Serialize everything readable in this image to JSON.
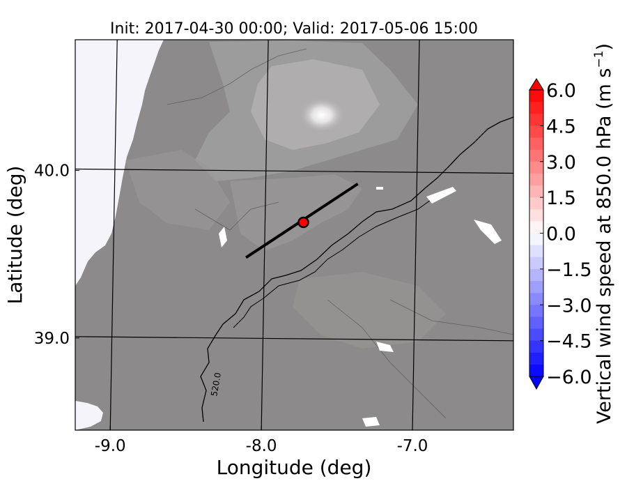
{
  "chart_data": {
    "type": "heatmap",
    "title": "Init: 2017-04-30 00:00; Valid: 2017-05-06 15:00",
    "xlabel": "Longitude (deg)",
    "ylabel": "Latitude (deg)",
    "xlim": [
      -9.25,
      -6.35
    ],
    "ylim": [
      38.45,
      40.78
    ],
    "x_ticks": [
      {
        "value": -9.0,
        "label": "-9.0"
      },
      {
        "value": -8.0,
        "label": "-8.0"
      },
      {
        "value": -7.0,
        "label": "-7.0"
      }
    ],
    "y_ticks": [
      {
        "value": 40.0,
        "label": "40.0"
      },
      {
        "value": 39.0,
        "label": "39.0"
      }
    ],
    "grid": true,
    "cross_section_line": {
      "start": [
        -8.12,
        39.48
      ],
      "end": [
        -7.38,
        39.92
      ]
    },
    "marker": {
      "lon": -7.74,
      "lat": 39.69,
      "color": "#ff0000"
    },
    "contour_labels": [
      {
        "lon": -8.3,
        "lat": 38.72,
        "text": "520.0"
      }
    ],
    "colorbar": {
      "label": "Vertical wind speed at 850.0 hPa (m s",
      "label_superscript": "−1",
      "label_close": ")",
      "min": -6.0,
      "max": 6.0,
      "extend": "both",
      "ticks": [
        {
          "value": 6.0,
          "label": "6.0"
        },
        {
          "value": 4.5,
          "label": "4.5"
        },
        {
          "value": 3.0,
          "label": "3.0"
        },
        {
          "value": 1.5,
          "label": "1.5"
        },
        {
          "value": 0.0,
          "label": "0.0"
        },
        {
          "value": -1.5,
          "label": "−1.5"
        },
        {
          "value": -3.0,
          "label": "−3.0"
        },
        {
          "value": -4.5,
          "label": "−4.5"
        },
        {
          "value": -6.0,
          "label": "−6.0"
        }
      ],
      "colors": {
        "low": "#0000ff",
        "mid": "#ffffff",
        "high": "#ff0000"
      }
    },
    "colors": {
      "terrain": "#8c8a8a",
      "sea": "#f5f4fb",
      "peak": "#f2f2f2",
      "snow_patch": "#ffffff"
    }
  }
}
